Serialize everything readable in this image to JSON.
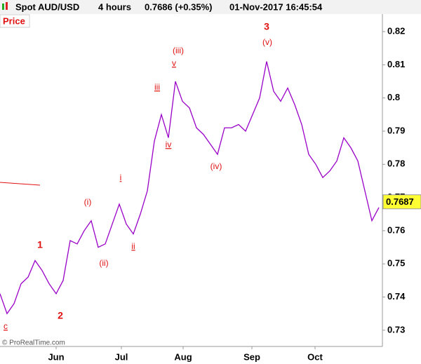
{
  "header": {
    "symbol": "Spot AUD/USD",
    "interval": "4 hours",
    "quote": "0.7686 (+0.35%)",
    "datetime": "01-Nov-2017 16:45:54"
  },
  "panel_label": "Price",
  "footer": "© ProRealTime.com",
  "chart_data": {
    "type": "line",
    "series": [
      {
        "color": "#9a00c8",
        "values": [
          0.741,
          0.735,
          0.738,
          0.744,
          0.746,
          0.751,
          0.748,
          0.744,
          0.741,
          0.745,
          0.757,
          0.756,
          0.76,
          0.763,
          0.755,
          0.756,
          0.762,
          0.768,
          0.762,
          0.759,
          0.765,
          0.772,
          0.787,
          0.795,
          0.788,
          0.805,
          0.799,
          0.797,
          0.791,
          0.789,
          0.786,
          0.783,
          0.791,
          0.791,
          0.792,
          0.79,
          0.795,
          0.8,
          0.811,
          0.802,
          0.799,
          0.803,
          0.798,
          0.792,
          0.783,
          0.78,
          0.776,
          0.778,
          0.781,
          0.788,
          0.785,
          0.781,
          0.772,
          0.763,
          0.767
        ]
      }
    ],
    "xlim": [
      0,
      54.5
    ],
    "xticks": [
      {
        "value": 8.0,
        "label": "Jun"
      },
      {
        "value": 17.3,
        "label": "Jul"
      },
      {
        "value": 26.1,
        "label": "Aug"
      },
      {
        "value": 35.9,
        "label": "Sep"
      },
      {
        "value": 44.9,
        "label": "Oct"
      }
    ],
    "ylim": [
      0.7251,
      0.8253
    ],
    "yticks": [
      0.73,
      0.74,
      0.75,
      0.76,
      0.77,
      0.78,
      0.79,
      0.8,
      0.81,
      0.82
    ],
    "last_price": 0.7687,
    "annotations": [
      "c",
      "1",
      "2",
      "(i)",
      "(ii)",
      "i",
      "ii",
      "iii",
      "iv",
      "v",
      "(iii)",
      "(iv)",
      "3",
      "(v)"
    ]
  }
}
